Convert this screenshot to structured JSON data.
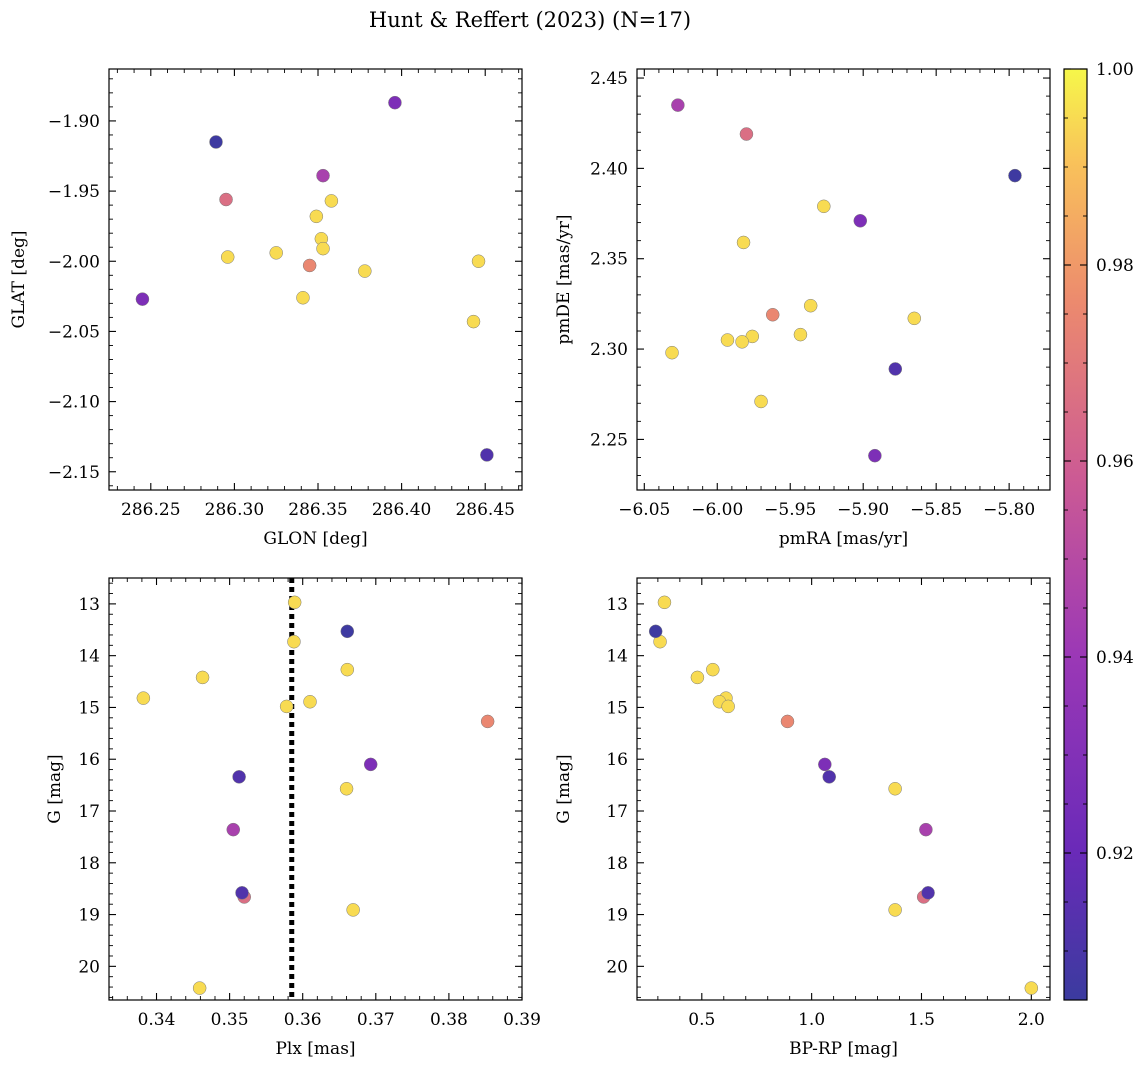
{
  "figure": {
    "title": "Hunt & Reffert (2023) (N=17)"
  },
  "colorbar": {
    "colormap": "plasma",
    "range": [
      0.905,
      1.0
    ],
    "ticks": [
      0.92,
      0.94,
      0.96,
      0.98,
      1.0
    ],
    "tick_labels": [
      "0.92",
      "0.94",
      "0.96",
      "0.98",
      "1.00"
    ]
  },
  "chart_data": [
    {
      "type": "scatter",
      "panel": "top-left",
      "xlabel": "GLON [deg]",
      "ylabel": "GLAT [deg]",
      "xlim": [
        286.225,
        286.472
      ],
      "ylim": [
        -2.163,
        -1.863
      ],
      "xticks": [
        286.25,
        286.3,
        286.35,
        286.4,
        286.45
      ],
      "xtick_labels": [
        "286.25",
        "286.30",
        "286.35",
        "286.40",
        "286.45"
      ],
      "yticks": [
        -1.9,
        -1.95,
        -2.0,
        -2.05,
        -2.1,
        -2.15
      ],
      "ytick_labels": [
        "−1.90",
        "−1.95",
        "−2.00",
        "−2.05",
        "−2.10",
        "−2.15"
      ],
      "points": [
        {
          "x": 286.289,
          "y": -1.915,
          "c": 0.906
        },
        {
          "x": 286.396,
          "y": -1.887,
          "c": 0.928
        },
        {
          "x": 286.353,
          "y": -1.939,
          "c": 0.945
        },
        {
          "x": 286.295,
          "y": -1.956,
          "c": 0.966
        },
        {
          "x": 286.358,
          "y": -1.957,
          "c": 0.995
        },
        {
          "x": 286.349,
          "y": -1.968,
          "c": 0.995
        },
        {
          "x": 286.352,
          "y": -1.984,
          "c": 0.995
        },
        {
          "x": 286.353,
          "y": -1.991,
          "c": 0.995
        },
        {
          "x": 286.325,
          "y": -1.994,
          "c": 0.995
        },
        {
          "x": 286.296,
          "y": -1.997,
          "c": 0.995
        },
        {
          "x": 286.446,
          "y": -2.0,
          "c": 0.995
        },
        {
          "x": 286.345,
          "y": -2.003,
          "c": 0.975
        },
        {
          "x": 286.378,
          "y": -2.007,
          "c": 0.995
        },
        {
          "x": 286.245,
          "y": -2.027,
          "c": 0.928
        },
        {
          "x": 286.341,
          "y": -2.026,
          "c": 0.995
        },
        {
          "x": 286.443,
          "y": -2.043,
          "c": 0.995
        },
        {
          "x": 286.451,
          "y": -2.138,
          "c": 0.912
        }
      ]
    },
    {
      "type": "scatter",
      "panel": "top-right",
      "xlabel": "pmRA [mas/yr]",
      "ylabel": "pmDE [mas/yr]",
      "xlim": [
        -6.055,
        -5.772
      ],
      "ylim": [
        2.222,
        2.455
      ],
      "xticks": [
        -6.05,
        -6.0,
        -5.95,
        -5.9,
        -5.85,
        -5.8
      ],
      "xtick_labels": [
        "−6.05",
        "−6.00",
        "−5.95",
        "−5.90",
        "−5.85",
        "−5.80"
      ],
      "yticks": [
        2.25,
        2.3,
        2.35,
        2.4,
        2.45
      ],
      "ytick_labels": [
        "2.25",
        "2.30",
        "2.35",
        "2.40",
        "2.45"
      ],
      "points": [
        {
          "x": -6.027,
          "y": 2.435,
          "c": 0.945
        },
        {
          "x": -5.98,
          "y": 2.419,
          "c": 0.966
        },
        {
          "x": -5.796,
          "y": 2.396,
          "c": 0.906
        },
        {
          "x": -5.927,
          "y": 2.379,
          "c": 0.995
        },
        {
          "x": -5.902,
          "y": 2.371,
          "c": 0.928
        },
        {
          "x": -5.982,
          "y": 2.359,
          "c": 0.995
        },
        {
          "x": -5.936,
          "y": 2.324,
          "c": 0.995
        },
        {
          "x": -5.962,
          "y": 2.319,
          "c": 0.975
        },
        {
          "x": -5.865,
          "y": 2.317,
          "c": 0.995
        },
        {
          "x": -5.943,
          "y": 2.308,
          "c": 0.995
        },
        {
          "x": -5.976,
          "y": 2.307,
          "c": 0.995
        },
        {
          "x": -5.993,
          "y": 2.305,
          "c": 0.995
        },
        {
          "x": -5.983,
          "y": 2.304,
          "c": 0.995
        },
        {
          "x": -6.031,
          "y": 2.298,
          "c": 0.995
        },
        {
          "x": -5.878,
          "y": 2.289,
          "c": 0.912
        },
        {
          "x": -5.97,
          "y": 2.271,
          "c": 0.995
        },
        {
          "x": -5.892,
          "y": 2.241,
          "c": 0.928
        }
      ]
    },
    {
      "type": "scatter",
      "panel": "bottom-left",
      "xlabel": "Plx [mas]",
      "ylabel": "G [mag]",
      "xlim": [
        0.3335,
        0.39
      ],
      "ylim": [
        20.65,
        12.5
      ],
      "y_inverted": true,
      "xticks": [
        0.34,
        0.35,
        0.36,
        0.37,
        0.38,
        0.39
      ],
      "xtick_labels": [
        "0.34",
        "0.35",
        "0.36",
        "0.37",
        "0.38",
        "0.39"
      ],
      "yticks": [
        13,
        14,
        15,
        16,
        17,
        18,
        19,
        20
      ],
      "ytick_labels": [
        "13",
        "14",
        "15",
        "16",
        "17",
        "18",
        "19",
        "20"
      ],
      "vline": {
        "x": 0.3585,
        "style": "dotted",
        "color": "#000000"
      },
      "points": [
        {
          "x": 0.3589,
          "y": 12.97,
          "c": 0.995
        },
        {
          "x": 0.3661,
          "y": 13.53,
          "c": 0.906
        },
        {
          "x": 0.3588,
          "y": 13.73,
          "c": 0.995
        },
        {
          "x": 0.3661,
          "y": 14.27,
          "c": 0.995
        },
        {
          "x": 0.3463,
          "y": 14.42,
          "c": 0.995
        },
        {
          "x": 0.3382,
          "y": 14.82,
          "c": 0.995
        },
        {
          "x": 0.361,
          "y": 14.89,
          "c": 0.995
        },
        {
          "x": 0.3578,
          "y": 14.98,
          "c": 0.995
        },
        {
          "x": 0.3853,
          "y": 15.27,
          "c": 0.975
        },
        {
          "x": 0.3693,
          "y": 16.1,
          "c": 0.928
        },
        {
          "x": 0.3513,
          "y": 16.34,
          "c": 0.912
        },
        {
          "x": 0.366,
          "y": 16.57,
          "c": 0.995
        },
        {
          "x": 0.3505,
          "y": 17.36,
          "c": 0.945
        },
        {
          "x": 0.3517,
          "y": 18.58,
          "c": 0.912
        },
        {
          "x": 0.352,
          "y": 18.66,
          "c": 0.966
        },
        {
          "x": 0.3669,
          "y": 18.91,
          "c": 0.995
        },
        {
          "x": 0.3459,
          "y": 20.42,
          "c": 0.995
        }
      ]
    },
    {
      "type": "scatter",
      "panel": "bottom-right",
      "xlabel": "BP-RP [mag]",
      "ylabel": "G [mag]",
      "xlim": [
        0.205,
        2.085
      ],
      "ylim": [
        20.65,
        12.5
      ],
      "y_inverted": true,
      "xticks": [
        0.5,
        1.0,
        1.5,
        2.0
      ],
      "xtick_labels": [
        "0.5",
        "1.0",
        "1.5",
        "2.0"
      ],
      "yticks": [
        13,
        14,
        15,
        16,
        17,
        18,
        19,
        20
      ],
      "ytick_labels": [
        "13",
        "14",
        "15",
        "16",
        "17",
        "18",
        "19",
        "20"
      ],
      "points": [
        {
          "x": 0.33,
          "y": 12.97,
          "c": 0.995
        },
        {
          "x": 0.29,
          "y": 13.53,
          "c": 0.906
        },
        {
          "x": 0.31,
          "y": 13.73,
          "c": 0.995
        },
        {
          "x": 0.55,
          "y": 14.27,
          "c": 0.995
        },
        {
          "x": 0.48,
          "y": 14.42,
          "c": 0.995
        },
        {
          "x": 0.61,
          "y": 14.82,
          "c": 0.995
        },
        {
          "x": 0.58,
          "y": 14.89,
          "c": 0.995
        },
        {
          "x": 0.62,
          "y": 14.98,
          "c": 0.995
        },
        {
          "x": 0.89,
          "y": 15.27,
          "c": 0.975
        },
        {
          "x": 1.06,
          "y": 16.1,
          "c": 0.928
        },
        {
          "x": 1.08,
          "y": 16.34,
          "c": 0.912
        },
        {
          "x": 1.38,
          "y": 16.57,
          "c": 0.995
        },
        {
          "x": 1.52,
          "y": 17.36,
          "c": 0.945
        },
        {
          "x": 1.53,
          "y": 18.58,
          "c": 0.912
        },
        {
          "x": 1.51,
          "y": 18.66,
          "c": 0.966
        },
        {
          "x": 1.38,
          "y": 18.91,
          "c": 0.995
        },
        {
          "x": 2.0,
          "y": 20.42,
          "c": 0.995
        }
      ]
    }
  ]
}
